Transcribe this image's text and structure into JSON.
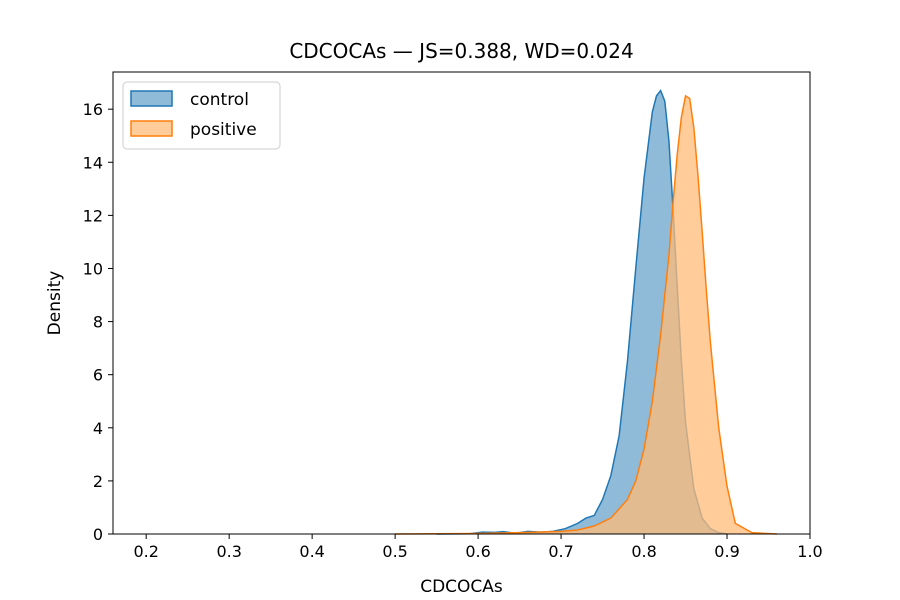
{
  "chart_data": {
    "type": "area",
    "title": "CDCOCAs — JS=0.388, WD=0.024",
    "xlabel": "CDCOCAs",
    "ylabel": "Density",
    "xlim": [
      0.16,
      1.0
    ],
    "ylim": [
      0,
      17.4
    ],
    "xticks": [
      "0.2",
      "0.3",
      "0.4",
      "0.5",
      "0.6",
      "0.7",
      "0.8",
      "0.9",
      "1.0"
    ],
    "yticks": [
      "0",
      "2",
      "4",
      "6",
      "8",
      "10",
      "12",
      "14",
      "16"
    ],
    "legend_position": "upper-left",
    "grid": false,
    "series": [
      {
        "name": "control",
        "line_color": "#1f77b4",
        "fill_color": "#1f77b4",
        "x": [
          0.55,
          0.59,
          0.605,
          0.62,
          0.63,
          0.645,
          0.66,
          0.675,
          0.69,
          0.705,
          0.72,
          0.73,
          0.74,
          0.75,
          0.76,
          0.77,
          0.78,
          0.79,
          0.8,
          0.81,
          0.815,
          0.82,
          0.825,
          0.83,
          0.835,
          0.84,
          0.845,
          0.85,
          0.86,
          0.87,
          0.88,
          0.89,
          0.9
        ],
        "y": [
          0.0,
          0.01,
          0.07,
          0.06,
          0.09,
          0.03,
          0.1,
          0.07,
          0.1,
          0.2,
          0.4,
          0.6,
          0.7,
          1.3,
          2.2,
          3.7,
          6.5,
          10.0,
          13.4,
          15.9,
          16.5,
          16.7,
          16.3,
          14.8,
          12.2,
          9.3,
          6.5,
          4.2,
          1.7,
          0.6,
          0.2,
          0.05,
          0.0
        ]
      },
      {
        "name": "positive",
        "line_color": "#ff7f0e",
        "fill_color": "#ffbb78",
        "x": [
          0.5,
          0.6,
          0.65,
          0.7,
          0.72,
          0.74,
          0.76,
          0.78,
          0.79,
          0.8,
          0.81,
          0.82,
          0.83,
          0.835,
          0.84,
          0.845,
          0.85,
          0.855,
          0.86,
          0.865,
          0.87,
          0.875,
          0.88,
          0.89,
          0.9,
          0.91,
          0.93,
          0.96
        ],
        "y": [
          0.0,
          0.02,
          0.05,
          0.1,
          0.15,
          0.3,
          0.6,
          1.3,
          2.0,
          3.2,
          5.0,
          7.5,
          10.5,
          12.5,
          14.3,
          15.7,
          16.5,
          16.4,
          15.3,
          13.5,
          11.4,
          9.2,
          7.2,
          4.0,
          1.8,
          0.4,
          0.05,
          0.0
        ]
      }
    ]
  }
}
